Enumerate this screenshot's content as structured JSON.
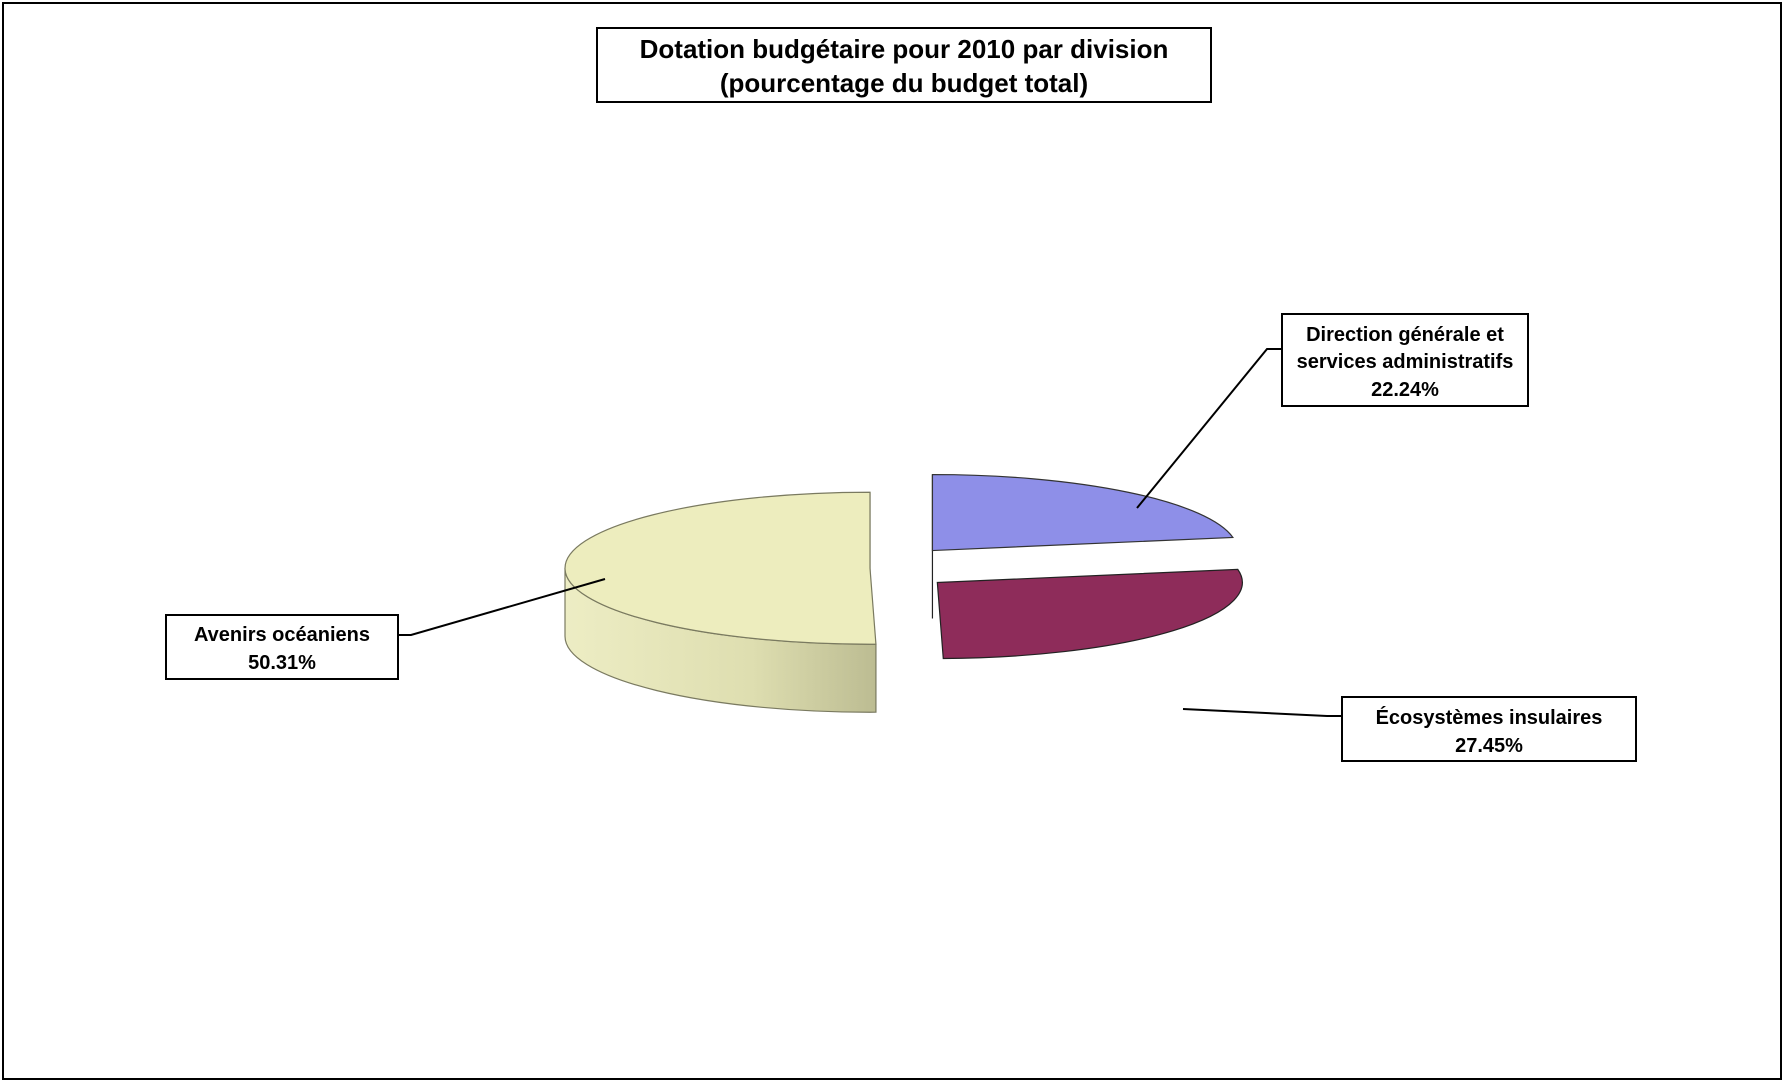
{
  "chart_data": {
    "type": "pie",
    "style": "3d-exploded",
    "title": [
      "Dotation budgétaire pour 2010 par division",
      "(pourcentage du budget total)"
    ],
    "slices": [
      {
        "name_lines": [
          "Direction générale et",
          "services administratifs"
        ],
        "value": 22.24,
        "value_label": "22.24%",
        "color": "#8e8fe8",
        "side_color": "#3e3f6c"
      },
      {
        "name_lines": [
          "Écosystèmes insulaires"
        ],
        "value": 27.45,
        "value_label": "27.45%",
        "color": "#8e2c5a",
        "side_color": "#4a1530"
      },
      {
        "name_lines": [
          "Avenirs océaniens"
        ],
        "value": 50.31,
        "value_label": "50.31%",
        "color": "#ededbe",
        "side_color": "#c4c49a"
      }
    ],
    "legend": "none"
  }
}
